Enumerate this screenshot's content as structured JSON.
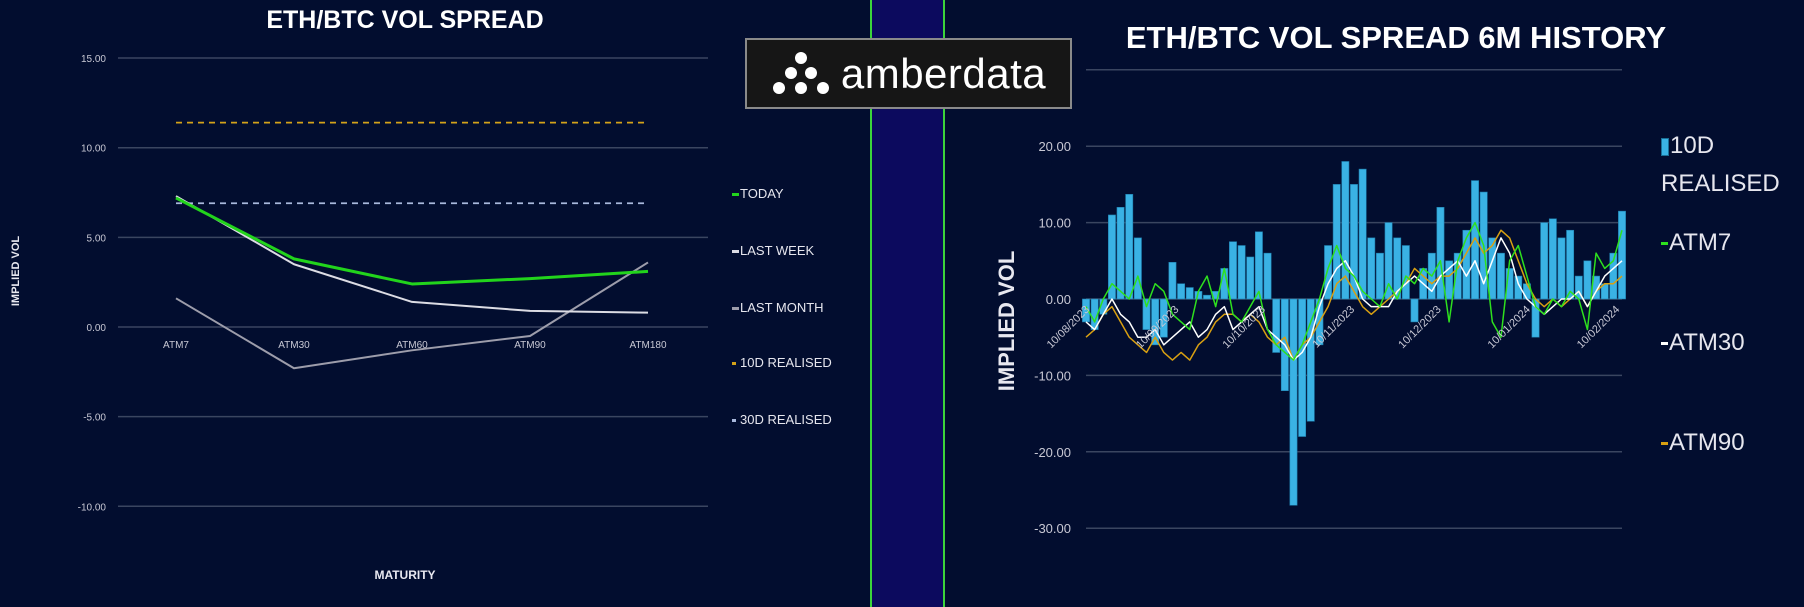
{
  "logo": {
    "text": "amberdata",
    "icon": "amberdata-dots-icon"
  },
  "colors": {
    "background": "#020d2f",
    "divider": "#0c0a5e",
    "divider_border": "#3bd43b"
  },
  "chart_data": [
    {
      "type": "line",
      "title": "ETH/BTC VOL SPREAD",
      "xlabel": "MATURITY",
      "ylabel": "IMPLIED VOL",
      "categories": [
        "ATM7",
        "ATM30",
        "ATM60",
        "ATM90",
        "ATM180"
      ],
      "ylim": [
        -10,
        15
      ],
      "yticks": [
        "15.00",
        "10.00",
        "5.00",
        "0.00",
        "-5.00",
        "-10.00"
      ],
      "ytick_values": [
        15,
        10,
        5,
        0,
        -5,
        -10
      ],
      "grid": true,
      "legend_placement": "right",
      "series": [
        {
          "name": "TODAY",
          "color": "#22d41c",
          "values": [
            7.2,
            3.8,
            2.4,
            2.7,
            3.1
          ]
        },
        {
          "name": "LAST WEEK",
          "color": "#dcdce4",
          "values": [
            7.3,
            3.5,
            1.4,
            0.9,
            0.8
          ]
        },
        {
          "name": "LAST MONTH",
          "color": "#9d9dab",
          "values": [
            1.6,
            -2.3,
            -1.3,
            -0.5,
            3.6
          ]
        },
        {
          "name": "10D REALISED",
          "color": "#d4a21a",
          "style": "dashed",
          "values": [
            11.4,
            11.4,
            11.4,
            11.4,
            11.4
          ]
        },
        {
          "name": "30D REALISED",
          "color": "#a9b8dc",
          "style": "dashed",
          "values": [
            6.9,
            6.9,
            6.9,
            6.9,
            6.9
          ]
        }
      ]
    },
    {
      "type": "bar+line",
      "title": "ETH/BTC VOL SPREAD 6M HISTORY",
      "ylabel": "IMPLIED VOL",
      "ylim": [
        -30,
        30
      ],
      "yticks": [
        "20.00",
        "10.00",
        "0.00",
        "-10.00",
        "-20.00",
        "-30.00"
      ],
      "ytick_values": [
        20,
        10,
        0,
        -10,
        -20,
        -30
      ],
      "grid": true,
      "legend_placement": "right",
      "xticks": [
        "10/08/2023",
        "10/09/2023",
        "10/10/2023",
        "10/11/2023",
        "10/12/2023",
        "10/01/2024",
        "10/02/2024"
      ],
      "x": [
        "10/08/2023",
        "13/08/2023",
        "16/08/2023",
        "19/08/2023",
        "22/08/2023",
        "25/08/2023",
        "28/08/2023",
        "31/08/2023",
        "03/09/2023",
        "06/09/2023",
        "09/09/2023",
        "12/09/2023",
        "15/09/2023",
        "18/09/2023",
        "21/09/2023",
        "24/09/2023",
        "27/09/2023",
        "30/09/2023",
        "03/10/2023",
        "06/10/2023",
        "09/10/2023",
        "12/10/2023",
        "15/10/2023",
        "18/10/2023",
        "21/10/2023",
        "24/10/2023",
        "27/10/2023",
        "30/10/2023",
        "02/11/2023",
        "05/11/2023",
        "08/11/2023",
        "11/11/2023",
        "14/11/2023",
        "17/11/2023",
        "20/11/2023",
        "23/11/2023",
        "26/11/2023",
        "29/11/2023",
        "02/12/2023",
        "05/12/2023",
        "08/12/2023",
        "11/12/2023",
        "14/12/2023",
        "17/12/2023",
        "20/12/2023",
        "23/12/2023",
        "26/12/2023",
        "29/12/2023",
        "01/01/2024",
        "04/01/2024",
        "07/01/2024",
        "10/01/2024",
        "13/01/2024",
        "16/01/2024",
        "19/01/2024",
        "22/01/2024",
        "25/01/2024",
        "28/01/2024",
        "31/01/2024",
        "03/02/2024",
        "06/02/2024",
        "09/02/2024",
        "12/02/2024"
      ],
      "series": [
        {
          "name": "10D REALISED",
          "kind": "bar",
          "color": "#3ab2e4",
          "values": [
            -3,
            -4,
            -2,
            11,
            12,
            13.7,
            8,
            -4,
            -6,
            -5,
            4.8,
            2,
            1.5,
            1,
            0.5,
            1,
            4,
            7.5,
            7,
            5.5,
            8.8,
            6,
            -7,
            -12,
            -27,
            -18,
            -16,
            -6,
            7,
            15,
            18,
            15,
            17,
            8,
            6,
            10,
            8,
            7,
            -3,
            4,
            6,
            12,
            5,
            6,
            9,
            15.5,
            14,
            8,
            6,
            4,
            3,
            2,
            -5,
            10,
            10.5,
            8,
            9,
            3,
            5,
            3,
            2,
            6,
            11.5
          ]
        },
        {
          "name": "ATM7",
          "kind": "line",
          "color": "#2ee01e",
          "values": [
            -1,
            -3,
            0,
            2,
            1,
            0,
            3,
            -1,
            2,
            1,
            -2,
            -3,
            -4,
            1,
            3,
            -1,
            4,
            -2,
            -3,
            -1,
            1,
            -4,
            -6,
            -7,
            -8,
            -6,
            -3,
            0,
            4,
            7,
            4,
            3,
            1,
            0,
            -1,
            2,
            0,
            3,
            2,
            4,
            3,
            5,
            -3,
            5,
            8,
            10,
            7,
            -3,
            -5,
            5,
            7,
            3,
            -1,
            -2,
            0,
            -1,
            1,
            0,
            -4,
            6,
            4,
            5,
            9
          ]
        },
        {
          "name": "ATM30",
          "kind": "line",
          "color": "#ffffff",
          "values": [
            -3,
            -4,
            -2,
            0,
            -2,
            -3,
            -5,
            -5,
            -4,
            -6,
            -5,
            -4,
            -3,
            -5,
            -4,
            -2,
            -1,
            -4,
            -3,
            -2,
            -1,
            -4,
            -5,
            -6,
            -8,
            -7,
            -5,
            -1,
            2,
            4,
            5,
            3,
            0,
            -1,
            -1,
            -1,
            1,
            2,
            3,
            2,
            1,
            3,
            4,
            5,
            3,
            5,
            2,
            5,
            8,
            6,
            2,
            0,
            -1,
            -2,
            -1,
            0,
            0,
            1,
            -1,
            1,
            3,
            4,
            5
          ]
        },
        {
          "name": "ATM90",
          "kind": "line",
          "color": "#d9a012",
          "values": [
            -5,
            -4,
            -2,
            -1,
            -3,
            -5,
            -6,
            -7,
            -5,
            -7,
            -8,
            -7,
            -8,
            -6,
            -5,
            -3,
            -2,
            -2,
            -3,
            -2,
            -3,
            -5,
            -6,
            -5,
            -8,
            -6,
            -5,
            -3,
            -1,
            2,
            3,
            1,
            -1,
            -2,
            -1,
            0,
            1,
            2,
            4,
            3,
            2,
            3,
            3,
            4,
            6,
            8,
            6,
            7,
            9,
            8,
            5,
            2,
            0,
            -1,
            0,
            -1,
            0,
            1,
            -1,
            1,
            2,
            2,
            3
          ]
        }
      ]
    }
  ]
}
